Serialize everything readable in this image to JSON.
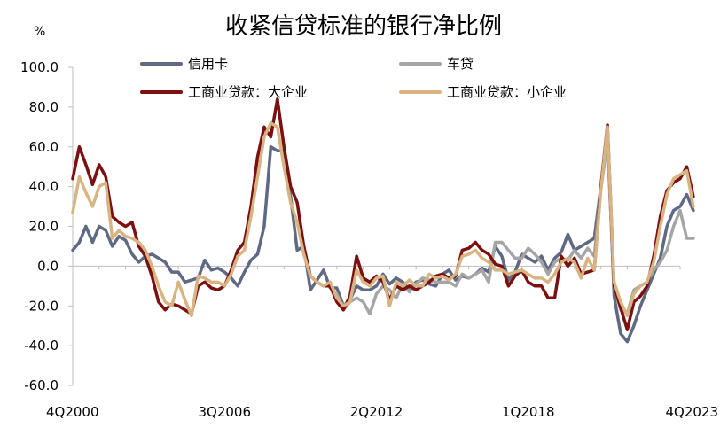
{
  "chart_data": {
    "type": "line",
    "title": "收紧信贷标准的银行净比例",
    "ylabel": "%",
    "xlabel": "",
    "ylim": [
      -60,
      100
    ],
    "y_ticks": [
      "100.0",
      "80.0",
      "60.0",
      "40.0",
      "20.0",
      "0.0",
      "-20.0",
      "-40.0",
      "-60.0"
    ],
    "x_ticks": [
      "4Q2000",
      "3Q2006",
      "2Q2012",
      "1Q2018",
      "4Q2023"
    ],
    "x_start": {
      "year": 2000,
      "quarter": 4
    },
    "grid": false,
    "legend_position": "top",
    "series": [
      {
        "name": "信用卡",
        "color": "#5F6983",
        "values": [
          8,
          12,
          20,
          12,
          20,
          18,
          10,
          15,
          13,
          6,
          2,
          5,
          6,
          4,
          2,
          -3,
          -3,
          -8,
          -7,
          -6,
          3,
          -2,
          -1,
          -3,
          -6,
          -10,
          -3,
          3,
          6,
          20,
          60,
          58,
          58,
          35,
          8,
          10,
          -12,
          -7,
          -2,
          -11,
          -11,
          -20,
          -17,
          -10,
          -12,
          -12,
          -10,
          -4,
          -9,
          -6,
          -8,
          -12,
          -8,
          -7,
          -9,
          -10,
          -4,
          -2,
          -7,
          -5,
          -6,
          -4,
          -1,
          -3,
          10,
          5,
          -7,
          -3,
          6,
          4,
          2,
          5,
          -2,
          4,
          7,
          16,
          8,
          10,
          12,
          14,
          40,
          68,
          -15,
          -34,
          -38,
          -30,
          -20,
          -12,
          -4,
          4,
          20,
          28,
          30,
          36,
          28
        ]
      },
      {
        "name": "车贷",
        "color": "#A5A5A5",
        "values": [
          null,
          null,
          null,
          null,
          null,
          null,
          null,
          null,
          null,
          null,
          null,
          null,
          null,
          null,
          null,
          null,
          null,
          null,
          null,
          null,
          null,
          null,
          null,
          null,
          null,
          null,
          null,
          null,
          null,
          null,
          null,
          null,
          null,
          null,
          null,
          null,
          null,
          null,
          null,
          null,
          -14,
          -22,
          -18,
          -16,
          -18,
          -24,
          -14,
          -10,
          -12,
          -16,
          -9,
          -13,
          -9,
          -6,
          -7,
          -8,
          -8,
          -8,
          -10,
          -4,
          -6,
          -4,
          -2,
          -8,
          12,
          12,
          8,
          4,
          4,
          9,
          6,
          2,
          -4,
          2,
          4,
          3,
          8,
          4,
          9,
          5,
          39,
          62,
          -10,
          -22,
          -24,
          -12,
          -10,
          -8,
          -2,
          2,
          8,
          20,
          28,
          14,
          14
        ]
      },
      {
        "name": "工商业贷款：大企业",
        "color": "#7B1010",
        "values": [
          44,
          60,
          51,
          41,
          51,
          45,
          25,
          22,
          20,
          22,
          10,
          5,
          -5,
          -18,
          -22,
          -19,
          -20,
          -22,
          -24,
          -10,
          -8,
          -11,
          -12,
          -10,
          -2,
          8,
          12,
          30,
          55,
          70,
          65,
          84,
          60,
          40,
          32,
          10,
          -5,
          -8,
          -10,
          -10,
          -18,
          -22,
          -15,
          5,
          -6,
          -8,
          -5,
          -8,
          -17,
          -10,
          -12,
          -10,
          -12,
          -10,
          -8,
          -5,
          -4,
          -6,
          -5,
          8,
          9,
          12,
          8,
          6,
          1,
          0,
          -10,
          -5,
          -2,
          -8,
          -10,
          -10,
          -16,
          -16,
          5,
          0,
          4,
          -4,
          -3,
          -2,
          40,
          71,
          -10,
          -21,
          -32,
          -18,
          -15,
          -10,
          5,
          25,
          38,
          42,
          44,
          50,
          35
        ]
      },
      {
        "name": "工商业贷款：小企业",
        "color": "#D7B482",
        "values": [
          27,
          45,
          37,
          30,
          40,
          42,
          14,
          18,
          15,
          14,
          12,
          8,
          0,
          -10,
          -18,
          -20,
          -8,
          -17,
          -25,
          -5,
          -6,
          -8,
          -8,
          -10,
          -4,
          5,
          8,
          25,
          45,
          65,
          72,
          70,
          50,
          32,
          22,
          6,
          -5,
          -8,
          -10,
          -8,
          -16,
          -20,
          -18,
          -2,
          -8,
          -10,
          -6,
          -5,
          -20,
          -8,
          -10,
          -7,
          -10,
          -10,
          -4,
          -6,
          -5,
          -7,
          -4,
          5,
          6,
          8,
          4,
          2,
          -2,
          -2,
          -4,
          -3,
          -2,
          -4,
          -6,
          -6,
          -8,
          -4,
          2,
          4,
          2,
          -6,
          4,
          -2,
          38,
          70,
          -8,
          -18,
          -25,
          -14,
          -10,
          -8,
          2,
          20,
          36,
          44,
          46,
          48,
          30
        ]
      }
    ]
  }
}
